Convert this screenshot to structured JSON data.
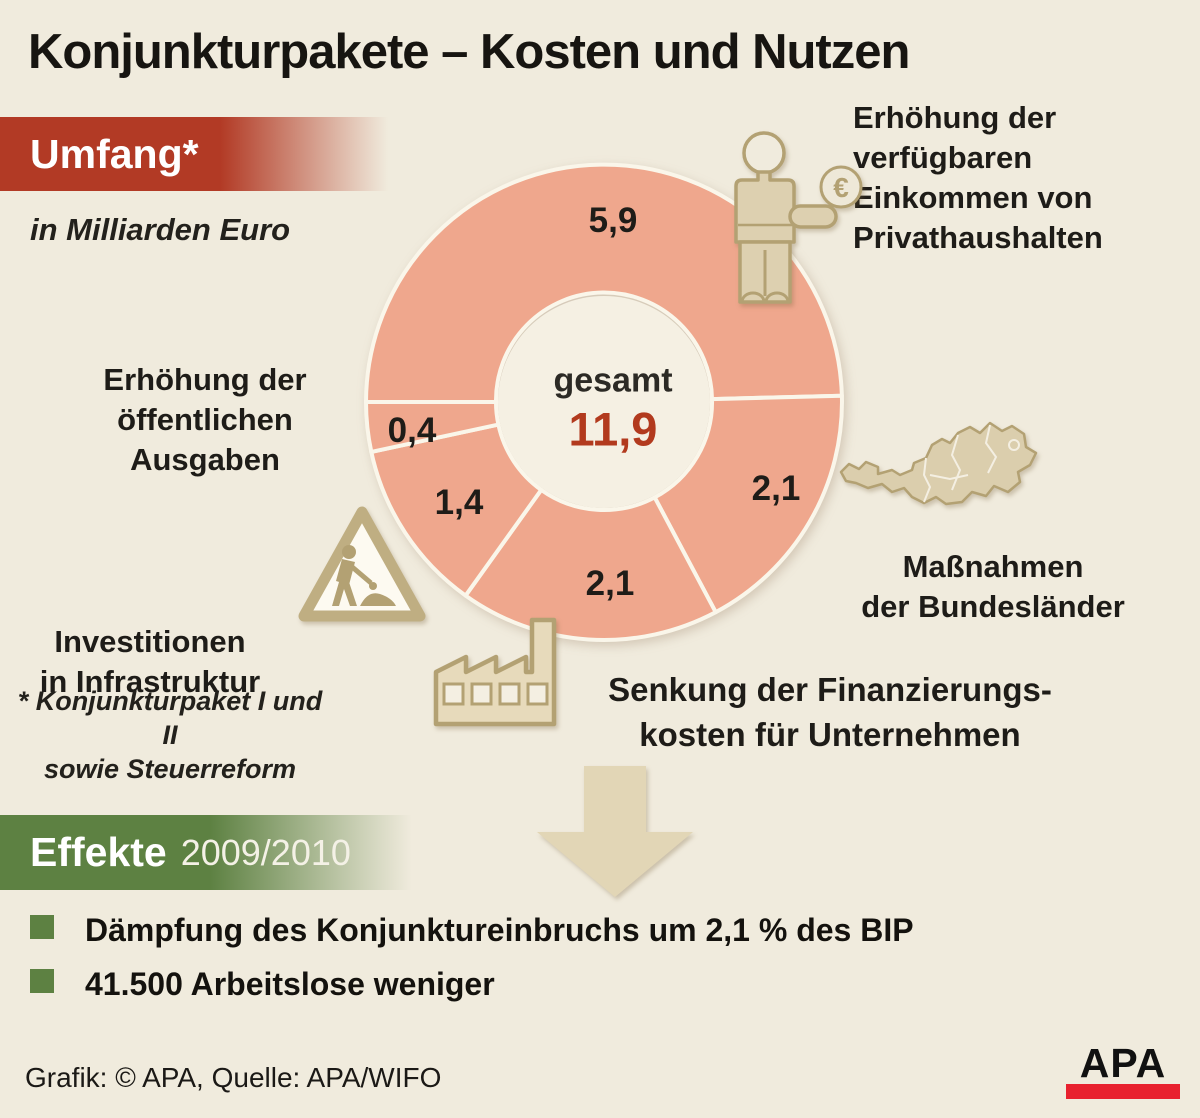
{
  "title": "Konjunkturpakete – Kosten und Nutzen",
  "sections": {
    "umfang": {
      "label": "Umfang*",
      "subtitle": "in Milliarden Euro"
    },
    "effekte": {
      "label": "Effekte",
      "year": "2009/2010"
    }
  },
  "chart_data": {
    "type": "pie",
    "variant": "donut",
    "units": "Milliarden Euro",
    "total": 11.9,
    "center_label": "gesamt",
    "center_value_label": "11,9",
    "start_angle_deg": 270,
    "direction": "clockwise",
    "legend_position": "around-chart",
    "segments": [
      {
        "label": "Erhöhung der verfügbaren Einkommen von Privathaushalten",
        "value": 5.9,
        "value_label": "5,9"
      },
      {
        "label": "Maßnahmen der Bundesländer",
        "value": 2.1,
        "value_label": "2,1"
      },
      {
        "label": "Senkung der Finanzierungskosten für Unternehmen",
        "value": 2.1,
        "value_label": "2,1"
      },
      {
        "label": "Investitionen in Infrastruktur",
        "value": 1.4,
        "value_label": "1,4"
      },
      {
        "label": "Erhöhung der öffentlichen Ausgaben",
        "value": 0.4,
        "value_label": "0,4"
      }
    ],
    "colors": {
      "slice": "#efa78d",
      "divider": "#faf6ea",
      "hole": "#f5f0e3",
      "value_text": "#1e1c18",
      "center_value_text": "#b23a1e"
    }
  },
  "callouts": {
    "privathaushalte": {
      "text": "Erhöhung der\nverfügbaren\nEinkommen von\nPrivathaushalten"
    },
    "bundeslaender": {
      "text": "Maßnahmen\nder Bundesländer"
    },
    "unternehmen": {
      "text": "Senkung der Finanzierungs-\nkosten für Unternehmen"
    },
    "infrastruktur": {
      "text": "Investitionen\nin Infrastruktur"
    },
    "ausgaben": {
      "text": "Erhöhung der\nöffentlichen\nAusgaben"
    }
  },
  "footnote": {
    "text": "* Konjunkturpaket I und II\nsowie Steuerreform"
  },
  "effects": {
    "items": [
      {
        "text": "Dämpfung des Konjunktureinbruchs um 2,1 % des BIP"
      },
      {
        "text": "41.500 Arbeitslose weniger"
      }
    ]
  },
  "footer": {
    "credit": "Grafik: © APA, Quelle: APA/WIFO",
    "logo_text": "APA"
  },
  "icons": {
    "person_euro": "person-with-euro-coin",
    "austria_map": "austria-map",
    "roadworks": "roadworks-sign",
    "factory": "factory",
    "down_arrow": "down-arrow"
  },
  "colors": {
    "background": "#f0ebdd",
    "accent_red": "#b23a25",
    "accent_green": "#5d8142",
    "icon_tan": "#b3a173",
    "icon_beige": "#ddd0b0",
    "logo_red": "#e8212e"
  }
}
